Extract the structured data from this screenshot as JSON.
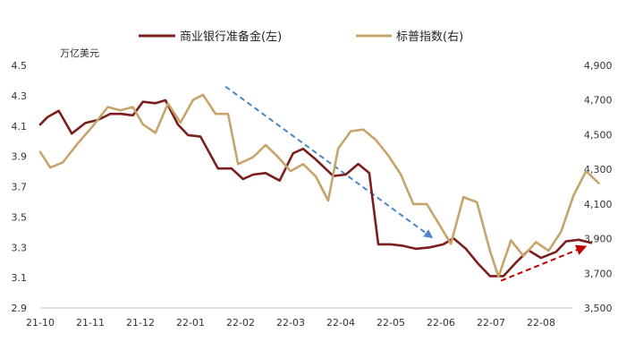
{
  "chart_data": {
    "type": "line",
    "left_unit": "万亿美元",
    "x_ticks": [
      "21-10",
      "21-11",
      "21-12",
      "22-01",
      "22-02",
      "22-03",
      "22-04",
      "22-05",
      "22-06",
      "22-07",
      "22-08"
    ],
    "y_left": {
      "min": 2.9,
      "max": 4.5,
      "ticks": [
        "2.9",
        "3.1",
        "3.3",
        "3.5",
        "3.7",
        "3.9",
        "4.1",
        "4.3",
        "4.5"
      ]
    },
    "y_right": {
      "min": 3500,
      "max": 4900,
      "ticks": [
        "3,500",
        "3,700",
        "3,900",
        "4,100",
        "4,300",
        "4,500",
        "4,700",
        "4,900"
      ]
    },
    "legend_position": "top",
    "series": [
      {
        "name": "商业银行准备金(左)",
        "axis": "left",
        "color": "#7b1e1e",
        "points": [
          [
            0.0,
            4.11
          ],
          [
            0.15,
            4.16
          ],
          [
            0.37,
            4.2
          ],
          [
            0.63,
            4.05
          ],
          [
            0.9,
            4.12
          ],
          [
            1.15,
            4.14
          ],
          [
            1.4,
            4.18
          ],
          [
            1.62,
            4.18
          ],
          [
            1.85,
            4.17
          ],
          [
            2.05,
            4.26
          ],
          [
            2.3,
            4.25
          ],
          [
            2.5,
            4.27
          ],
          [
            2.75,
            4.11
          ],
          [
            2.95,
            4.04
          ],
          [
            3.2,
            4.03
          ],
          [
            3.55,
            3.82
          ],
          [
            3.82,
            3.82
          ],
          [
            4.05,
            3.75
          ],
          [
            4.25,
            3.78
          ],
          [
            4.5,
            3.79
          ],
          [
            4.78,
            3.74
          ],
          [
            5.05,
            3.92
          ],
          [
            5.25,
            3.95
          ],
          [
            5.5,
            3.88
          ],
          [
            5.85,
            3.77
          ],
          [
            6.1,
            3.78
          ],
          [
            6.35,
            3.85
          ],
          [
            6.57,
            3.79
          ],
          [
            6.75,
            3.32
          ],
          [
            7.0,
            3.32
          ],
          [
            7.25,
            3.31
          ],
          [
            7.5,
            3.29
          ],
          [
            7.78,
            3.3
          ],
          [
            8.05,
            3.32
          ],
          [
            8.25,
            3.36
          ],
          [
            8.5,
            3.29
          ],
          [
            8.75,
            3.19
          ],
          [
            8.98,
            3.11
          ],
          [
            9.25,
            3.11
          ],
          [
            9.5,
            3.2
          ],
          [
            9.75,
            3.28
          ],
          [
            10.0,
            3.23
          ],
          [
            10.3,
            3.27
          ],
          [
            10.5,
            3.34
          ],
          [
            10.75,
            3.35
          ],
          [
            11.0,
            3.33
          ]
        ]
      },
      {
        "name": "标普指数(右)",
        "axis": "right",
        "color": "#c6a46b",
        "points": [
          [
            0.0,
            4400
          ],
          [
            0.2,
            4310
          ],
          [
            0.45,
            4340
          ],
          [
            0.75,
            4450
          ],
          [
            1.05,
            4550
          ],
          [
            1.35,
            4660
          ],
          [
            1.6,
            4640
          ],
          [
            1.85,
            4660
          ],
          [
            2.05,
            4560
          ],
          [
            2.3,
            4510
          ],
          [
            2.55,
            4680
          ],
          [
            2.8,
            4570
          ],
          [
            3.05,
            4700
          ],
          [
            3.25,
            4730
          ],
          [
            3.5,
            4620
          ],
          [
            3.75,
            4620
          ],
          [
            3.95,
            4330
          ],
          [
            4.25,
            4370
          ],
          [
            4.5,
            4440
          ],
          [
            4.72,
            4380
          ],
          [
            5.0,
            4290
          ],
          [
            5.25,
            4330
          ],
          [
            5.5,
            4260
          ],
          [
            5.75,
            4120
          ],
          [
            5.95,
            4420
          ],
          [
            6.2,
            4520
          ],
          [
            6.45,
            4530
          ],
          [
            6.7,
            4470
          ],
          [
            6.95,
            4380
          ],
          [
            7.2,
            4270
          ],
          [
            7.45,
            4100
          ],
          [
            7.72,
            4100
          ],
          [
            7.95,
            3990
          ],
          [
            8.2,
            3870
          ],
          [
            8.45,
            4140
          ],
          [
            8.72,
            4110
          ],
          [
            8.98,
            3830
          ],
          [
            9.15,
            3680
          ],
          [
            9.4,
            3890
          ],
          [
            9.65,
            3800
          ],
          [
            9.9,
            3880
          ],
          [
            10.15,
            3830
          ],
          [
            10.4,
            3940
          ],
          [
            10.65,
            4150
          ],
          [
            10.9,
            4290
          ],
          [
            11.15,
            4220
          ]
        ]
      }
    ],
    "annotations": [
      {
        "kind": "dashed-arrow",
        "color": "#4a86c8",
        "from": [
          3.7,
          4.36
        ],
        "to": [
          7.8,
          3.37
        ],
        "axis": "left"
      },
      {
        "kind": "dashed-arrow",
        "color": "#c00000",
        "from": [
          9.2,
          3.08
        ],
        "to": [
          10.85,
          3.3
        ],
        "axis": "left"
      }
    ]
  }
}
